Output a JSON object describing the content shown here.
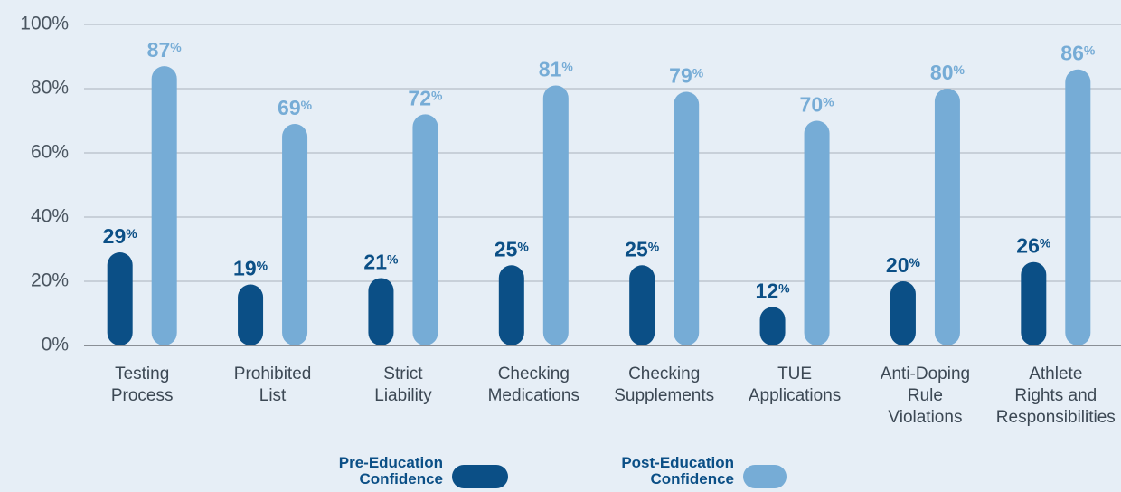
{
  "chart_data": {
    "type": "bar",
    "categories": [
      "Testing\nProcess",
      "Prohibited\nList",
      "Strict\nLiability",
      "Checking\nMedications",
      "Checking\nSupplements",
      "TUE\nApplications",
      "Anti-Doping\nRule\nViolations",
      "Athlete\nRights and\nResponsibilities"
    ],
    "series": [
      {
        "name": "Pre-Education\nConfidence",
        "color": "#0b4f86",
        "values": [
          29,
          19,
          21,
          25,
          25,
          12,
          20,
          26
        ],
        "value_labels": [
          "29%",
          "19%",
          "21%",
          "25%",
          "25%",
          "12%",
          "20%",
          "26%"
        ]
      },
      {
        "name": "Post-Education\nConfidence",
        "color": "#76acd6",
        "values": [
          87,
          69,
          72,
          81,
          79,
          70,
          80,
          86
        ],
        "value_labels": [
          "87%",
          "69%",
          "72%",
          "81%",
          "79%",
          "70%",
          "80%",
          "86%"
        ]
      }
    ],
    "ylim": [
      0,
      100
    ],
    "yticks": [
      {
        "value": 0,
        "label": "0%"
      },
      {
        "value": 20,
        "label": "20%"
      },
      {
        "value": 40,
        "label": "40%"
      },
      {
        "value": 60,
        "label": "60%"
      },
      {
        "value": 80,
        "label": "80%"
      },
      {
        "value": 100,
        "label": "100%"
      }
    ],
    "grid": true,
    "legend": "bottom"
  }
}
